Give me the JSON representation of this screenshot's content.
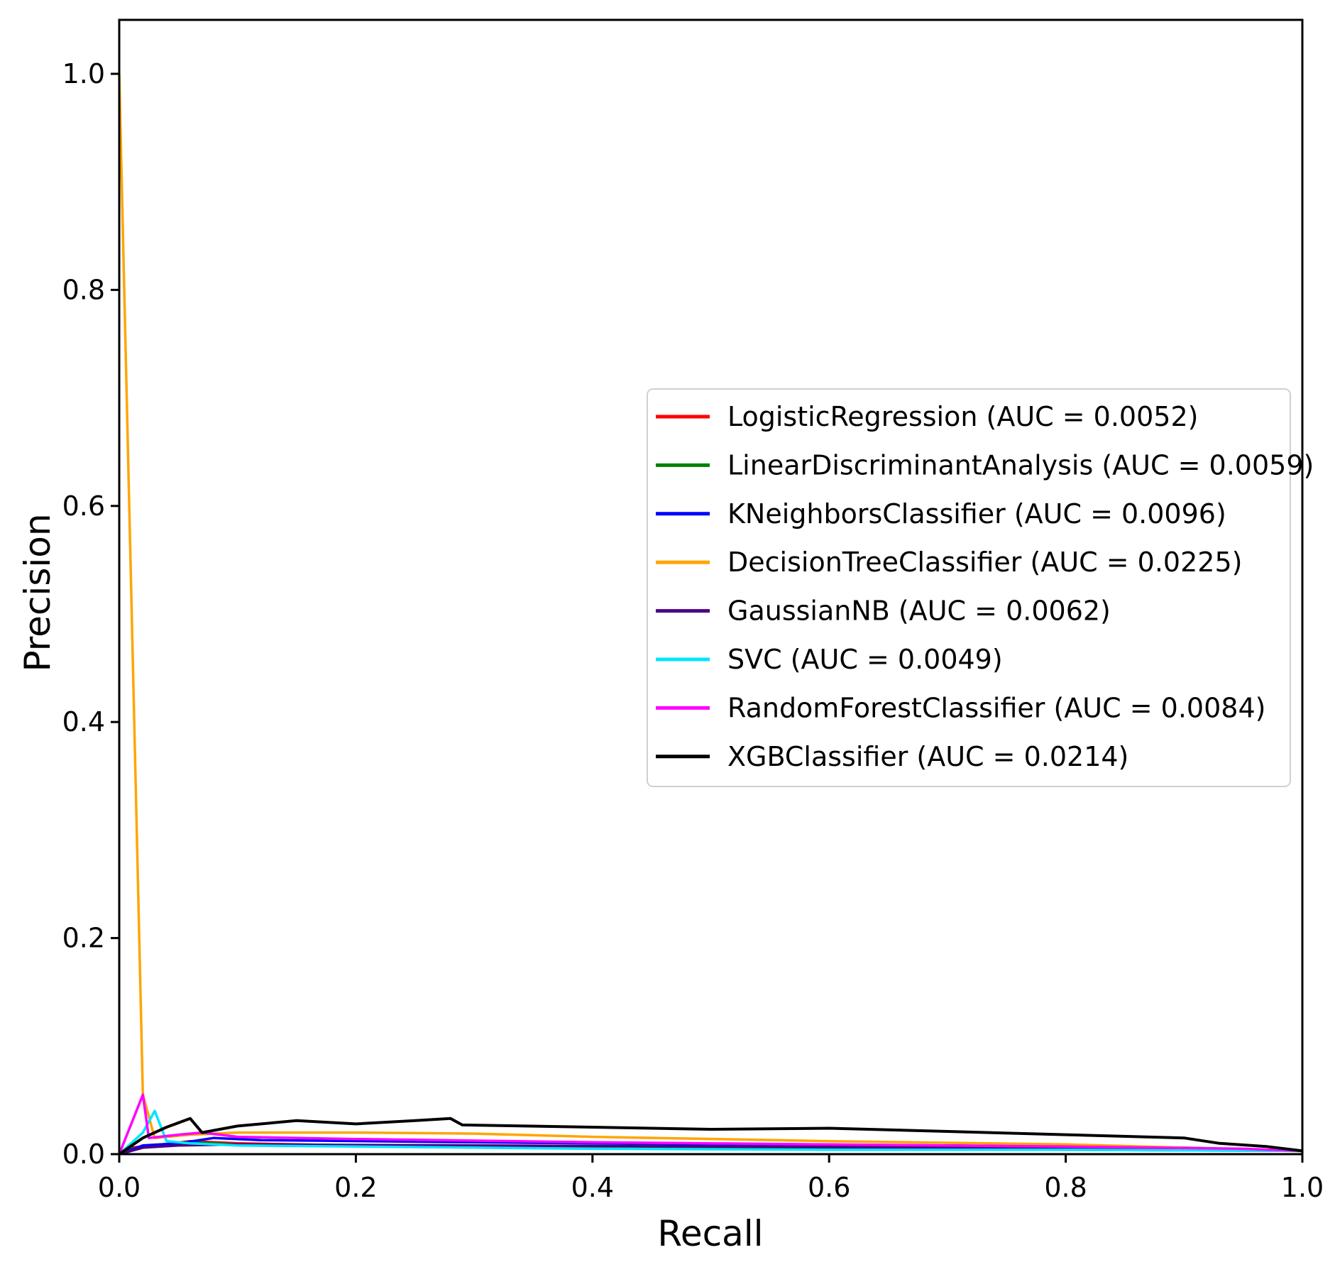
{
  "chart_data": {
    "type": "line",
    "xlabel": "Recall",
    "ylabel": "Precision",
    "xlim": [
      0.0,
      1.0
    ],
    "ylim": [
      0.0,
      1.05
    ],
    "xticks": [
      "0.0",
      "0.2",
      "0.4",
      "0.6",
      "0.8",
      "1.0"
    ],
    "yticks": [
      "0.0",
      "0.2",
      "0.4",
      "0.6",
      "0.8",
      "1.0"
    ],
    "grid": false,
    "legend_position": "center-right",
    "series": [
      {
        "name": "LogisticRegression (AUC = 0.0052)",
        "color": "#ff0000",
        "points": [
          [
            0.0,
            0.0
          ],
          [
            0.01,
            0.006
          ],
          [
            0.03,
            0.008
          ],
          [
            0.06,
            0.012
          ],
          [
            0.1,
            0.01
          ],
          [
            0.2,
            0.008
          ],
          [
            0.4,
            0.006
          ],
          [
            0.6,
            0.005
          ],
          [
            0.8,
            0.004
          ],
          [
            1.0,
            0.003
          ]
        ]
      },
      {
        "name": "LinearDiscriminantAnalysis (AUC = 0.0059)",
        "color": "#008000",
        "points": [
          [
            0.0,
            0.0
          ],
          [
            0.01,
            0.005
          ],
          [
            0.03,
            0.008
          ],
          [
            0.06,
            0.011
          ],
          [
            0.1,
            0.009
          ],
          [
            0.2,
            0.008
          ],
          [
            0.4,
            0.007
          ],
          [
            0.6,
            0.006
          ],
          [
            0.8,
            0.005
          ],
          [
            1.0,
            0.003
          ]
        ]
      },
      {
        "name": "KNeighborsClassifier (AUC = 0.0096)",
        "color": "#0000ff",
        "points": [
          [
            0.0,
            0.0
          ],
          [
            0.02,
            0.008
          ],
          [
            0.05,
            0.01
          ],
          [
            0.08,
            0.015
          ],
          [
            0.12,
            0.013
          ],
          [
            0.3,
            0.011
          ],
          [
            0.5,
            0.009
          ],
          [
            0.7,
            0.008
          ],
          [
            0.9,
            0.006
          ],
          [
            1.0,
            0.003
          ]
        ]
      },
      {
        "name": "DecisionTreeClassifier (AUC = 0.0225)",
        "color": "#ffa500",
        "points": [
          [
            0.0,
            1.0
          ],
          [
            0.02,
            0.055
          ],
          [
            0.03,
            0.015
          ],
          [
            0.06,
            0.018
          ],
          [
            0.1,
            0.02
          ],
          [
            0.2,
            0.02
          ],
          [
            0.3,
            0.019
          ],
          [
            0.4,
            0.016
          ],
          [
            0.6,
            0.012
          ],
          [
            0.8,
            0.009
          ],
          [
            1.0,
            0.003
          ]
        ]
      },
      {
        "name": "GaussianNB (AUC = 0.0062)",
        "color": "#4b0082",
        "points": [
          [
            0.0,
            0.0
          ],
          [
            0.02,
            0.006
          ],
          [
            0.05,
            0.008
          ],
          [
            0.1,
            0.009
          ],
          [
            0.3,
            0.008
          ],
          [
            0.5,
            0.007
          ],
          [
            0.7,
            0.006
          ],
          [
            0.9,
            0.005
          ],
          [
            1.0,
            0.003
          ]
        ]
      },
      {
        "name": "SVC (AUC = 0.0049)",
        "color": "#00e5ff",
        "points": [
          [
            0.0,
            0.0
          ],
          [
            0.02,
            0.02
          ],
          [
            0.03,
            0.04
          ],
          [
            0.04,
            0.012
          ],
          [
            0.06,
            0.01
          ],
          [
            0.1,
            0.008
          ],
          [
            0.2,
            0.007
          ],
          [
            0.4,
            0.005
          ],
          [
            0.6,
            0.004
          ],
          [
            0.8,
            0.004
          ],
          [
            1.0,
            0.003
          ]
        ]
      },
      {
        "name": "RandomForestClassifier (AUC = 0.0084)",
        "color": "#ff00ff",
        "points": [
          [
            0.0,
            0.0
          ],
          [
            0.02,
            0.055
          ],
          [
            0.025,
            0.015
          ],
          [
            0.05,
            0.018
          ],
          [
            0.07,
            0.02
          ],
          [
            0.1,
            0.016
          ],
          [
            0.2,
            0.014
          ],
          [
            0.4,
            0.011
          ],
          [
            0.6,
            0.009
          ],
          [
            0.8,
            0.007
          ],
          [
            0.95,
            0.005
          ],
          [
            1.0,
            0.003
          ]
        ]
      },
      {
        "name": "XGBClassifier (AUC = 0.0214)",
        "color": "#000000",
        "points": [
          [
            0.0,
            0.0
          ],
          [
            0.02,
            0.015
          ],
          [
            0.04,
            0.025
          ],
          [
            0.06,
            0.033
          ],
          [
            0.07,
            0.02
          ],
          [
            0.1,
            0.026
          ],
          [
            0.15,
            0.031
          ],
          [
            0.2,
            0.028
          ],
          [
            0.25,
            0.031
          ],
          [
            0.28,
            0.033
          ],
          [
            0.29,
            0.027
          ],
          [
            0.4,
            0.025
          ],
          [
            0.5,
            0.023
          ],
          [
            0.6,
            0.024
          ],
          [
            0.7,
            0.021
          ],
          [
            0.8,
            0.018
          ],
          [
            0.9,
            0.015
          ],
          [
            0.93,
            0.01
          ],
          [
            0.97,
            0.007
          ],
          [
            1.0,
            0.003
          ]
        ]
      }
    ]
  }
}
